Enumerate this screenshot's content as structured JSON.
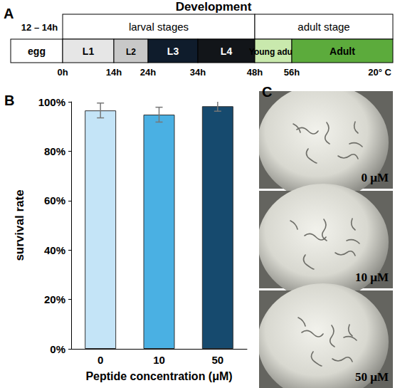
{
  "panel_letters": [
    "A",
    "B",
    "C"
  ],
  "panel_a": {
    "title": "Development",
    "egg_time": "12 – 14h",
    "groups": [
      "larval stages",
      "adult stage"
    ],
    "stages": [
      {
        "label": "egg",
        "color": "#ffffff"
      },
      {
        "label": "L1",
        "color": "#e6e6e6"
      },
      {
        "label": "L2",
        "color": "#c8c8c8"
      },
      {
        "label": "L3",
        "color": "#0f1c2c"
      },
      {
        "label": "L4",
        "color": "#121519"
      },
      {
        "label": "Young adult",
        "color": "#c9e9ad"
      },
      {
        "label": "Adult",
        "color": "#5cab3c"
      }
    ],
    "time_marks": [
      "0h",
      "14h",
      "24h",
      "34h",
      "48h",
      "56h"
    ],
    "temperature": "20° C"
  },
  "chart_data": {
    "type": "bar",
    "categories": [
      "0",
      "10",
      "50"
    ],
    "values": [
      96.5,
      94.8,
      98.2
    ],
    "errors": [
      3,
      3,
      2
    ],
    "colors": [
      "#c4e4f7",
      "#4ab0e3",
      "#164a6e"
    ],
    "x_label": "Peptide concentration (μM)",
    "y_label": "survival rate",
    "ylim": [
      0,
      100
    ],
    "yticks": [
      {
        "value": 0,
        "label": "0%"
      },
      {
        "value": 20,
        "label": "20%"
      },
      {
        "value": 40,
        "label": "40%"
      },
      {
        "value": 60,
        "label": "60%"
      },
      {
        "value": 80,
        "label": "80%"
      },
      {
        "value": 100,
        "label": "100%"
      }
    ],
    "grid": false
  },
  "panel_c": {
    "photos": [
      {
        "label": "0 μM"
      },
      {
        "label": "10 μM"
      },
      {
        "label": "50 μM"
      }
    ]
  }
}
